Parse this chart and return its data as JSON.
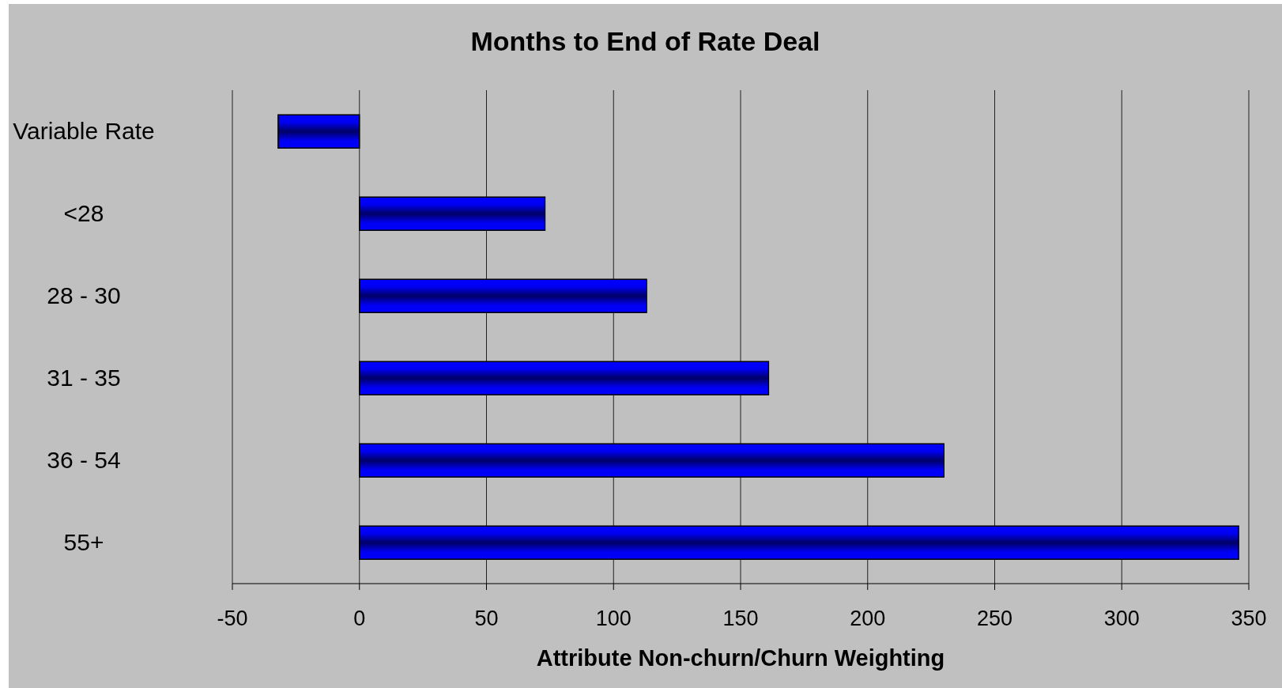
{
  "chart_data": {
    "type": "bar",
    "orientation": "horizontal",
    "title": "Months to End of Rate Deal",
    "xlabel": "Attribute Non-churn/Churn Weighting",
    "categories": [
      "Variable Rate",
      "<28",
      "28 - 30",
      "31 - 35",
      "36 - 54",
      "55+"
    ],
    "values": [
      -32,
      73,
      113,
      161,
      230,
      346
    ],
    "color": "#0000ff",
    "xlim": [
      -50,
      350
    ],
    "xticks": [
      -50,
      0,
      50,
      100,
      150,
      200,
      250,
      300,
      350
    ],
    "grid": "x"
  }
}
